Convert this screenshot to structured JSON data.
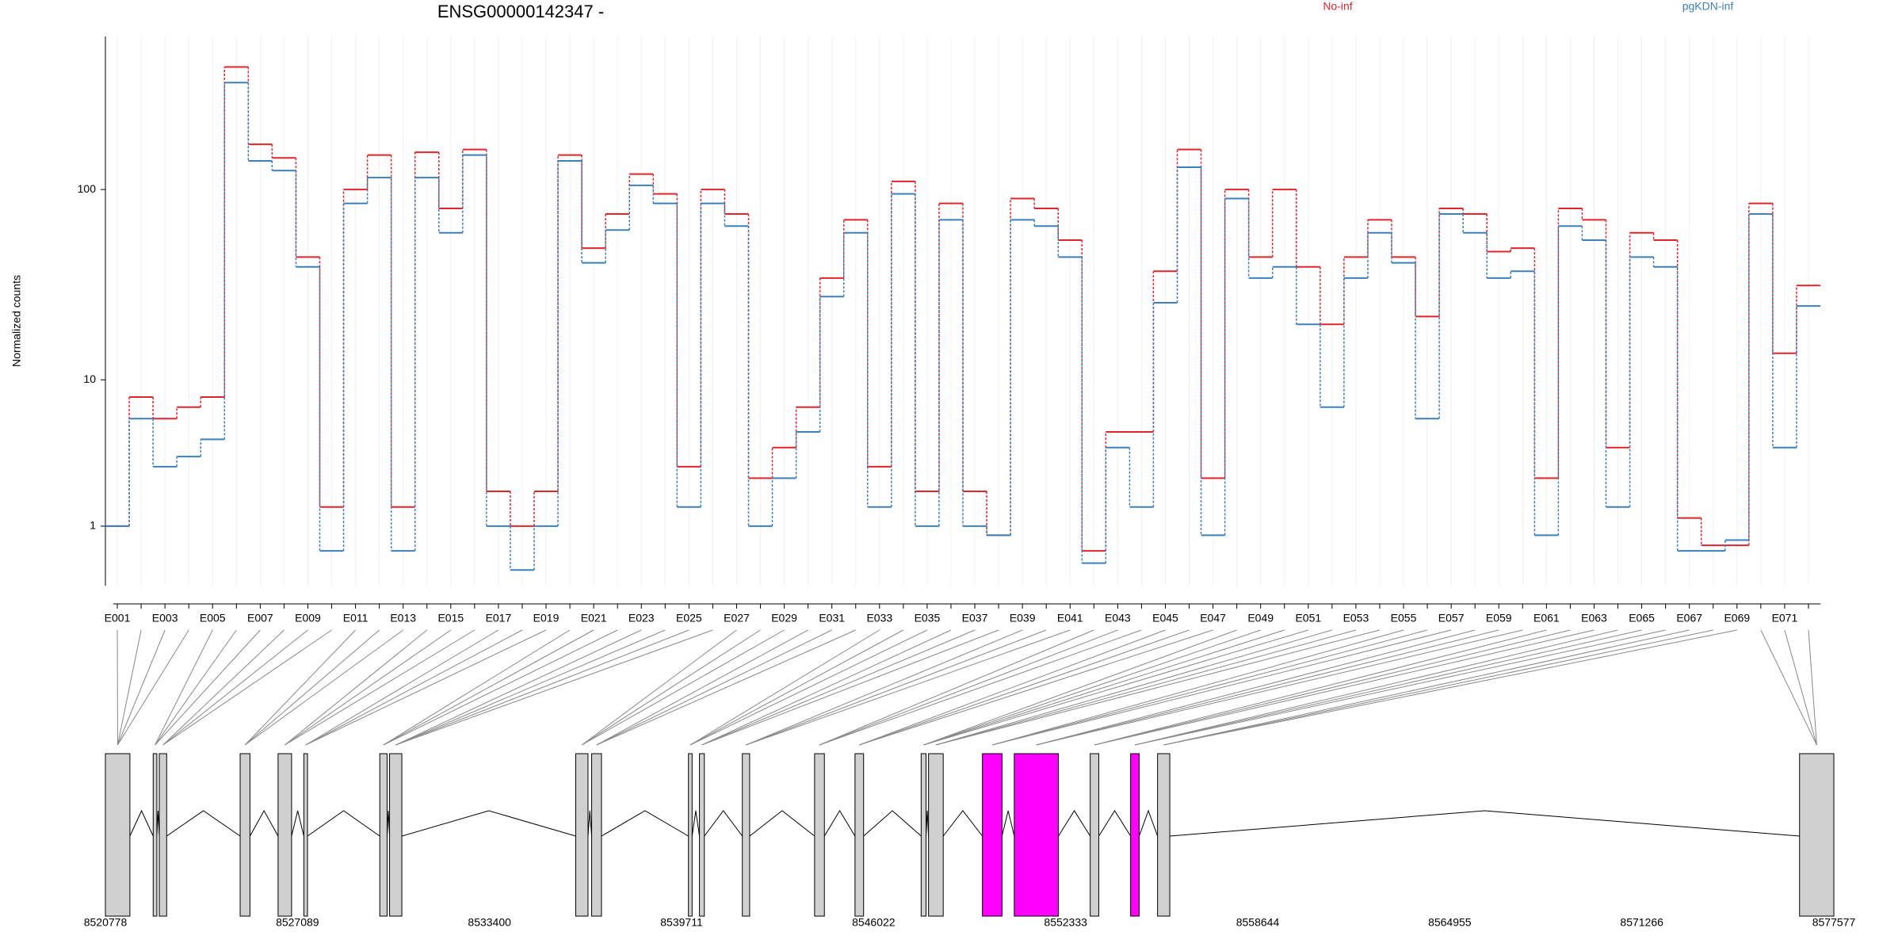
{
  "chart_data": [
    {
      "type": "line",
      "title": "ENSG00000142347 -",
      "y_label": "Normalized counts",
      "yscale": "log1p",
      "ylim": [
        0,
        600
      ],
      "yticks": [
        1,
        10,
        100
      ],
      "categories": [
        "E001",
        null,
        "E003",
        null,
        "E005",
        null,
        "E007",
        null,
        "E009",
        null,
        "E011",
        null,
        "E013",
        null,
        "E015",
        null,
        "E017",
        null,
        "E019",
        null,
        "E021",
        null,
        "E023",
        null,
        "E025",
        null,
        "E027",
        null,
        "E029",
        null,
        "E031",
        null,
        "E033",
        null,
        "E035",
        null,
        "E037",
        null,
        "E039",
        null,
        "E041",
        null,
        "E043",
        null,
        "E045",
        null,
        "E047",
        null,
        "E049",
        null,
        "E051",
        null,
        "E053",
        null,
        "E055",
        null,
        "E057",
        null,
        "E059",
        null,
        "E061",
        null,
        "E063",
        null,
        "E065",
        null,
        "E067",
        null,
        "E069",
        null,
        "E071",
        null
      ],
      "series": [
        {
          "name": "No-inf",
          "color": "#e3242b",
          "values": [
            1,
            8,
            6,
            7,
            8,
            420,
            170,
            145,
            45,
            1.5,
            100,
            150,
            1.5,
            155,
            80,
            160,
            2,
            1,
            2,
            150,
            50,
            75,
            120,
            95,
            3,
            100,
            75,
            2.5,
            4,
            7,
            35,
            70,
            3,
            110,
            2,
            85,
            2,
            0.8,
            90,
            80,
            55,
            0.5,
            5,
            5,
            38,
            160,
            2.5,
            100,
            45,
            100,
            40,
            20,
            45,
            70,
            45,
            22,
            80,
            75,
            48,
            50,
            2.5,
            80,
            70,
            4,
            60,
            55,
            1.2,
            0.6,
            0.6,
            85,
            14,
            32
          ]
        },
        {
          "name": "pgKDN-inf",
          "color": "#3b7fbf",
          "values": [
            1,
            6,
            3,
            3.5,
            4.5,
            350,
            140,
            125,
            40,
            0.5,
            85,
            115,
            0.5,
            115,
            60,
            150,
            1,
            0.2,
            1,
            140,
            42,
            62,
            105,
            85,
            1.5,
            85,
            65,
            1,
            2.5,
            5,
            28,
            60,
            1.5,
            95,
            1,
            70,
            1,
            0.8,
            70,
            65,
            45,
            0.3,
            4,
            1.5,
            26,
            130,
            0.8,
            90,
            35,
            40,
            20,
            7,
            35,
            60,
            42,
            6,
            75,
            60,
            35,
            38,
            0.8,
            65,
            55,
            1.5,
            45,
            40,
            0.5,
            0.5,
            0.7,
            75,
            4,
            25
          ]
        }
      ]
    },
    {
      "type": "gene-model",
      "xlim": [
        8520778,
        8577577
      ],
      "xticks": [
        8520778,
        8527089,
        8533400,
        8539711,
        8546022,
        8552333,
        8558644,
        8564955,
        8571266,
        8577577
      ],
      "color": "#d0d0d0",
      "highlight_color": "#ff00ff",
      "highlight": [
        17,
        18,
        20
      ],
      "exons": [
        [
          8520778,
          8521583
        ],
        [
          8522348,
          8522469
        ],
        [
          8522549,
          8522791
        ],
        [
          8525206,
          8525528
        ],
        [
          8526453,
          8526896
        ],
        [
          8527299,
          8527419
        ],
        [
          8529794,
          8530035
        ],
        [
          8530116,
          8530519
        ],
        [
          8536234,
          8536637
        ],
        [
          8536757,
          8537080
        ],
        [
          8539937,
          8540058
        ],
        [
          8540299,
          8540460
        ],
        [
          8541708,
          8541949
        ],
        [
          8544083,
          8544405
        ],
        [
          8545411,
          8545693
        ],
        [
          8547585,
          8547746
        ],
        [
          8547827,
          8548310
        ],
        [
          8549598,
          8550242
        ],
        [
          8550645,
          8552094
        ],
        [
          8553140,
          8553422
        ],
        [
          8554468,
          8554749
        ],
        [
          8555353,
          8555755
        ],
        [
          8576450,
          8577577
        ]
      ]
    }
  ]
}
